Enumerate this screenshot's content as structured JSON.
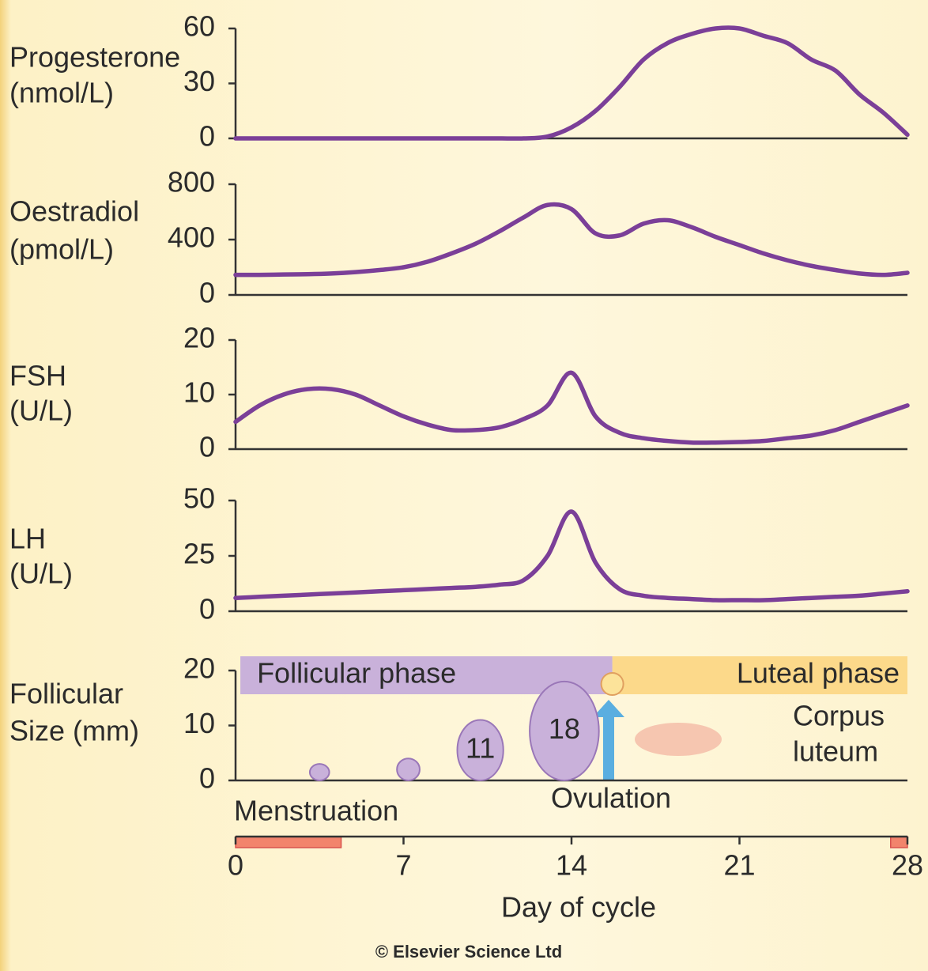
{
  "chart_data": [
    {
      "type": "line",
      "ylabel": [
        "Progesterone",
        "(nmol/L)"
      ],
      "color": "#7b3f98",
      "x": [
        0,
        1,
        2,
        3,
        4,
        5,
        6,
        7,
        8,
        9,
        10,
        11,
        12,
        13,
        14,
        15,
        16,
        17,
        18,
        19,
        20,
        21,
        22,
        23,
        24,
        25,
        26,
        27,
        28
      ],
      "values": [
        0,
        0,
        0,
        0,
        0,
        0,
        0,
        0,
        0,
        0,
        0,
        0,
        0,
        1,
        6,
        15,
        28,
        43,
        52,
        57,
        60,
        60,
        56,
        52,
        43,
        37,
        24,
        14,
        2
      ],
      "xlim": [
        0,
        28
      ],
      "ylim": [
        0,
        60
      ],
      "yticks": [
        0,
        30,
        60
      ]
    },
    {
      "type": "line",
      "ylabel": [
        "Oestradiol",
        "(pmol/L)"
      ],
      "color": "#7b3f98",
      "x": [
        0,
        1,
        2,
        3,
        4,
        5,
        6,
        7,
        8,
        9,
        10,
        11,
        12,
        13,
        14,
        15,
        16,
        17,
        18,
        19,
        20,
        21,
        22,
        23,
        24,
        25,
        26,
        27,
        28
      ],
      "values": [
        145,
        145,
        148,
        150,
        155,
        165,
        180,
        200,
        240,
        300,
        370,
        460,
        560,
        650,
        620,
        445,
        430,
        515,
        540,
        490,
        420,
        360,
        300,
        250,
        210,
        180,
        155,
        145,
        160
      ],
      "xlim": [
        0,
        28
      ],
      "ylim": [
        0,
        800
      ],
      "yticks": [
        0,
        400,
        800
      ]
    },
    {
      "type": "line",
      "ylabel": [
        "FSH",
        "(U/L)"
      ],
      "color": "#7b3f98",
      "x": [
        0,
        1,
        2,
        3,
        4,
        5,
        6,
        7,
        8,
        9,
        10,
        11,
        12,
        13,
        14,
        15,
        16,
        17,
        18,
        19,
        20,
        21,
        22,
        23,
        24,
        25,
        26,
        27,
        28
      ],
      "values": [
        5,
        8,
        10,
        11,
        11,
        10,
        8,
        6,
        4.5,
        3.5,
        3.5,
        4,
        5.5,
        8,
        14,
        6,
        3,
        2,
        1.5,
        1.2,
        1.2,
        1.3,
        1.5,
        2,
        2.5,
        3.5,
        5,
        6.5,
        8
      ],
      "xlim": [
        0,
        28
      ],
      "ylim": [
        0,
        20
      ],
      "yticks": [
        0,
        10,
        20
      ]
    },
    {
      "type": "line",
      "ylabel": [
        "LH",
        "(U/L)"
      ],
      "color": "#7b3f98",
      "x": [
        0,
        1,
        2,
        3,
        4,
        5,
        6,
        7,
        8,
        9,
        10,
        11,
        12,
        13,
        14,
        15,
        16,
        17,
        18,
        19,
        20,
        21,
        22,
        23,
        24,
        25,
        26,
        27,
        28
      ],
      "values": [
        6,
        6.5,
        7,
        7.5,
        8,
        8.5,
        9,
        9.5,
        10,
        10.5,
        11,
        12,
        14,
        25,
        45,
        22,
        10,
        7,
        6,
        5.5,
        5,
        5,
        5,
        5.5,
        6,
        6.5,
        7,
        8,
        9
      ],
      "xlim": [
        0,
        28
      ],
      "ylim": [
        0,
        50
      ],
      "yticks": [
        0,
        25,
        50
      ]
    },
    {
      "type": "follicle",
      "ylabel": [
        "Follicular",
        "Size (mm)"
      ],
      "color": "#c9b1da",
      "x": [
        3.5,
        7.2,
        10.2,
        13.7
      ],
      "values": [
        3,
        4,
        11,
        18
      ],
      "labeled": [
        false,
        false,
        true,
        true
      ],
      "phases": [
        {
          "name": "Follicular phase",
          "start": 0.2,
          "end": 15.7,
          "color": "#c9b1da"
        },
        {
          "name": "Luteal phase",
          "start": 15.7,
          "end": 28,
          "color": "#fcd98a"
        }
      ],
      "ovulation": "Ovulation",
      "corpus_luteum": [
        "Corpus",
        "luteum"
      ],
      "menstruation": {
        "label": "Menstruation",
        "color": "#f2846c",
        "periods": [
          [
            0,
            4.4
          ],
          [
            27.3,
            28
          ]
        ]
      },
      "xlim": [
        0,
        28
      ],
      "ylim": [
        0,
        20
      ],
      "yticks": [
        0,
        10,
        20
      ],
      "xticks": [
        0,
        7,
        14,
        21,
        28
      ],
      "xlabel": "Day of cycle"
    }
  ],
  "footer": "© Elsevier Science Ltd"
}
